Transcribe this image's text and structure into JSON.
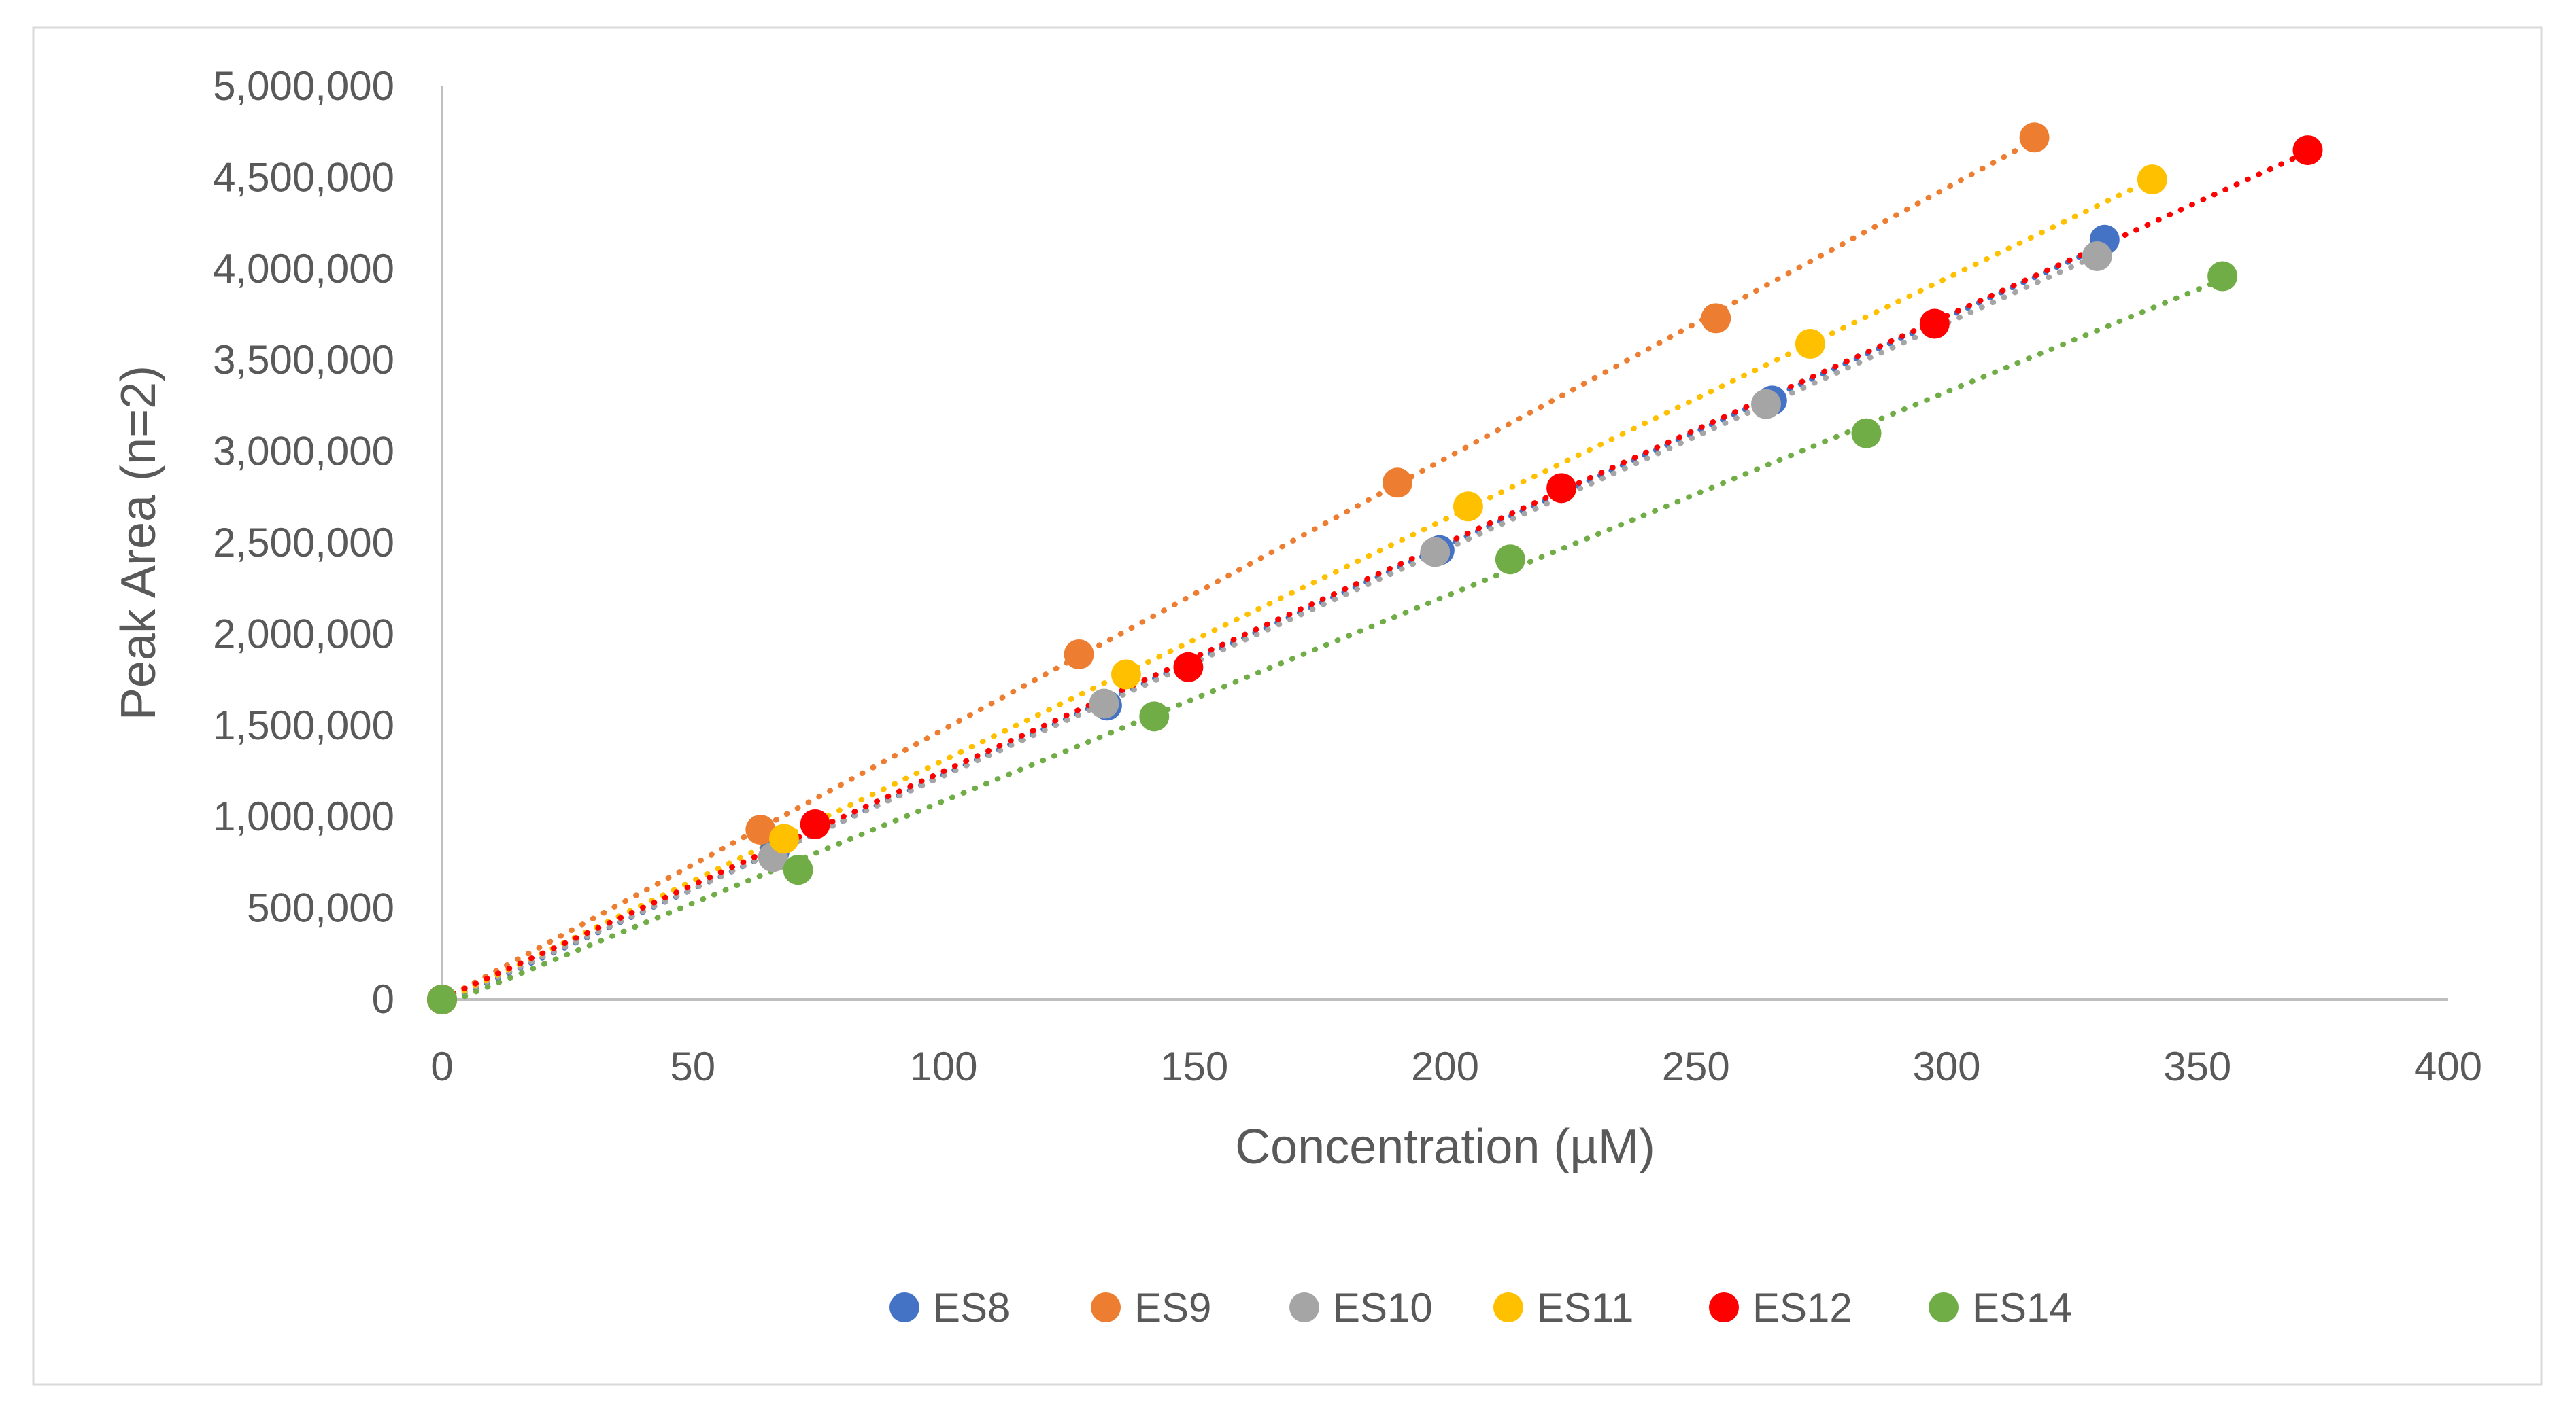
{
  "chart_data": {
    "type": "scatter",
    "title": "",
    "xlabel": "Concentration (µM)",
    "ylabel": "Peak Area (n=2)",
    "xlim": [
      0,
      400
    ],
    "ylim": [
      0,
      5000000
    ],
    "x_ticks": [
      "0",
      "50",
      "100",
      "150",
      "200",
      "250",
      "300",
      "350",
      "400"
    ],
    "y_ticks": [
      "0",
      "500,000",
      "1,000,000",
      "1,500,000",
      "2,000,000",
      "2,500,000",
      "3,000,000",
      "3,500,000",
      "4,000,000",
      "4,500,000",
      "5,000,000"
    ],
    "grid": false,
    "trendline": "linear, dotted",
    "legend_position": "bottom",
    "series": [
      {
        "name": "ES8",
        "color": "#4472C4",
        "x": [
          0,
          66.3,
          132.6,
          198.9,
          265.2,
          331.5
        ],
        "y": [
          0,
          810000,
          1610000,
          2460000,
          3280000,
          4160000
        ]
      },
      {
        "name": "ES9",
        "color": "#ED7D31",
        "x": [
          0,
          63.5,
          127,
          190.5,
          254,
          317.5
        ],
        "y": [
          0,
          930000,
          1890000,
          2830000,
          3730000,
          4720000
        ]
      },
      {
        "name": "ES10",
        "color": "#A5A5A5",
        "x": [
          0,
          66,
          132,
          198,
          264,
          330
        ],
        "y": [
          0,
          780000,
          1620000,
          2450000,
          3260000,
          4070000
        ]
      },
      {
        "name": "ES11",
        "color": "#FFC000",
        "x": [
          0,
          68.2,
          136.4,
          204.6,
          272.8,
          341
        ],
        "y": [
          0,
          880000,
          1780000,
          2700000,
          3590000,
          4490000
        ]
      },
      {
        "name": "ES12",
        "color": "#FF0000",
        "x": [
          0,
          74.4,
          148.8,
          223.2,
          297.6,
          372
        ],
        "y": [
          0,
          960000,
          1820000,
          2800000,
          3700000,
          4650000
        ]
      },
      {
        "name": "ES14",
        "color": "#70AD47",
        "x": [
          0,
          71,
          142,
          213,
          284,
          355
        ],
        "y": [
          0,
          710000,
          1550000,
          2410000,
          3100000,
          3960000
        ]
      }
    ]
  }
}
